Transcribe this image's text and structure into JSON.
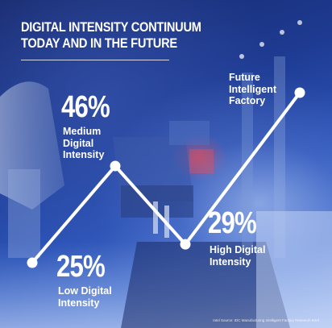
{
  "header": {
    "title_line1": "DIGITAL INTENSITY CONTINUUM",
    "title_line2": "TODAY AND IN THE FUTURE"
  },
  "chart_data": {
    "type": "line",
    "title": "DIGITAL INTENSITY CONTINUUM TODAY AND IN THE FUTURE",
    "x": [
      "Low Digital Intensity",
      "Medium Digital Intensity",
      "High Digital Intensity",
      "Future Intelligent Factory"
    ],
    "series": [
      {
        "values": [
          25,
          46,
          29,
          null
        ]
      }
    ],
    "points": [
      {
        "label": "Low Digital Intensity",
        "value_label": "25%",
        "value": 25
      },
      {
        "label": "Medium Digital Intensity",
        "value_label": "46%",
        "value": 46
      },
      {
        "label": "High Digital Intensity",
        "value_label": "29%",
        "value": 29
      },
      {
        "label": "Future Intelligent Factory",
        "value_label": "",
        "value": null
      }
    ],
    "labels": {
      "low": [
        "Low Digital",
        "Intensity"
      ],
      "medium": [
        "Medium",
        "Digital",
        "Intensity"
      ],
      "high": [
        "High Digital",
        "Intensity"
      ],
      "future": [
        "Future",
        "Intelligent",
        "Factory"
      ]
    },
    "line_color": "#ffffff",
    "grid": false
  },
  "footnote": "Intel Source: IDC Manufacturing Intelligent Factory Research Brief"
}
